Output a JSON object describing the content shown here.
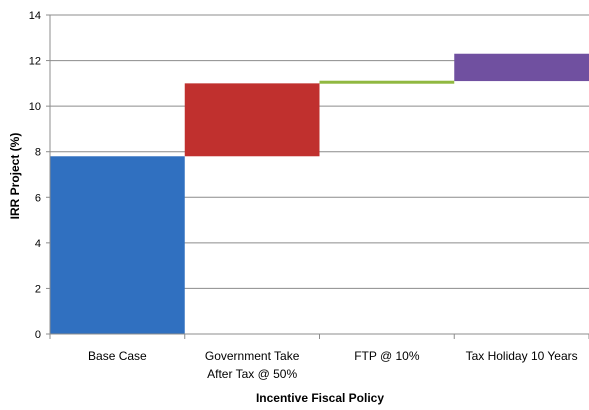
{
  "chart_data": {
    "type": "bar",
    "subtype": "waterfall",
    "title": "",
    "xlabel": "Incentive Fiscal Policy",
    "ylabel": "IRR Project (%)",
    "ylim": [
      0,
      14
    ],
    "yticks": [
      0,
      2,
      4,
      6,
      8,
      10,
      12,
      14
    ],
    "grid": true,
    "categories": [
      [
        "Base Case"
      ],
      [
        "Government Take",
        "After Tax @ 50%"
      ],
      [
        "FTP @ 10%"
      ],
      [
        "Tax Holiday 10 Years"
      ]
    ],
    "bars": [
      {
        "start": 0,
        "end": 7.8,
        "color": "#3070c0"
      },
      {
        "start": 7.8,
        "end": 11.0,
        "color": "#c0302e"
      },
      {
        "start": 11.0,
        "end": 11.1,
        "color": "#90b840"
      },
      {
        "start": 11.1,
        "end": 12.3,
        "color": "#7050a0"
      }
    ]
  }
}
